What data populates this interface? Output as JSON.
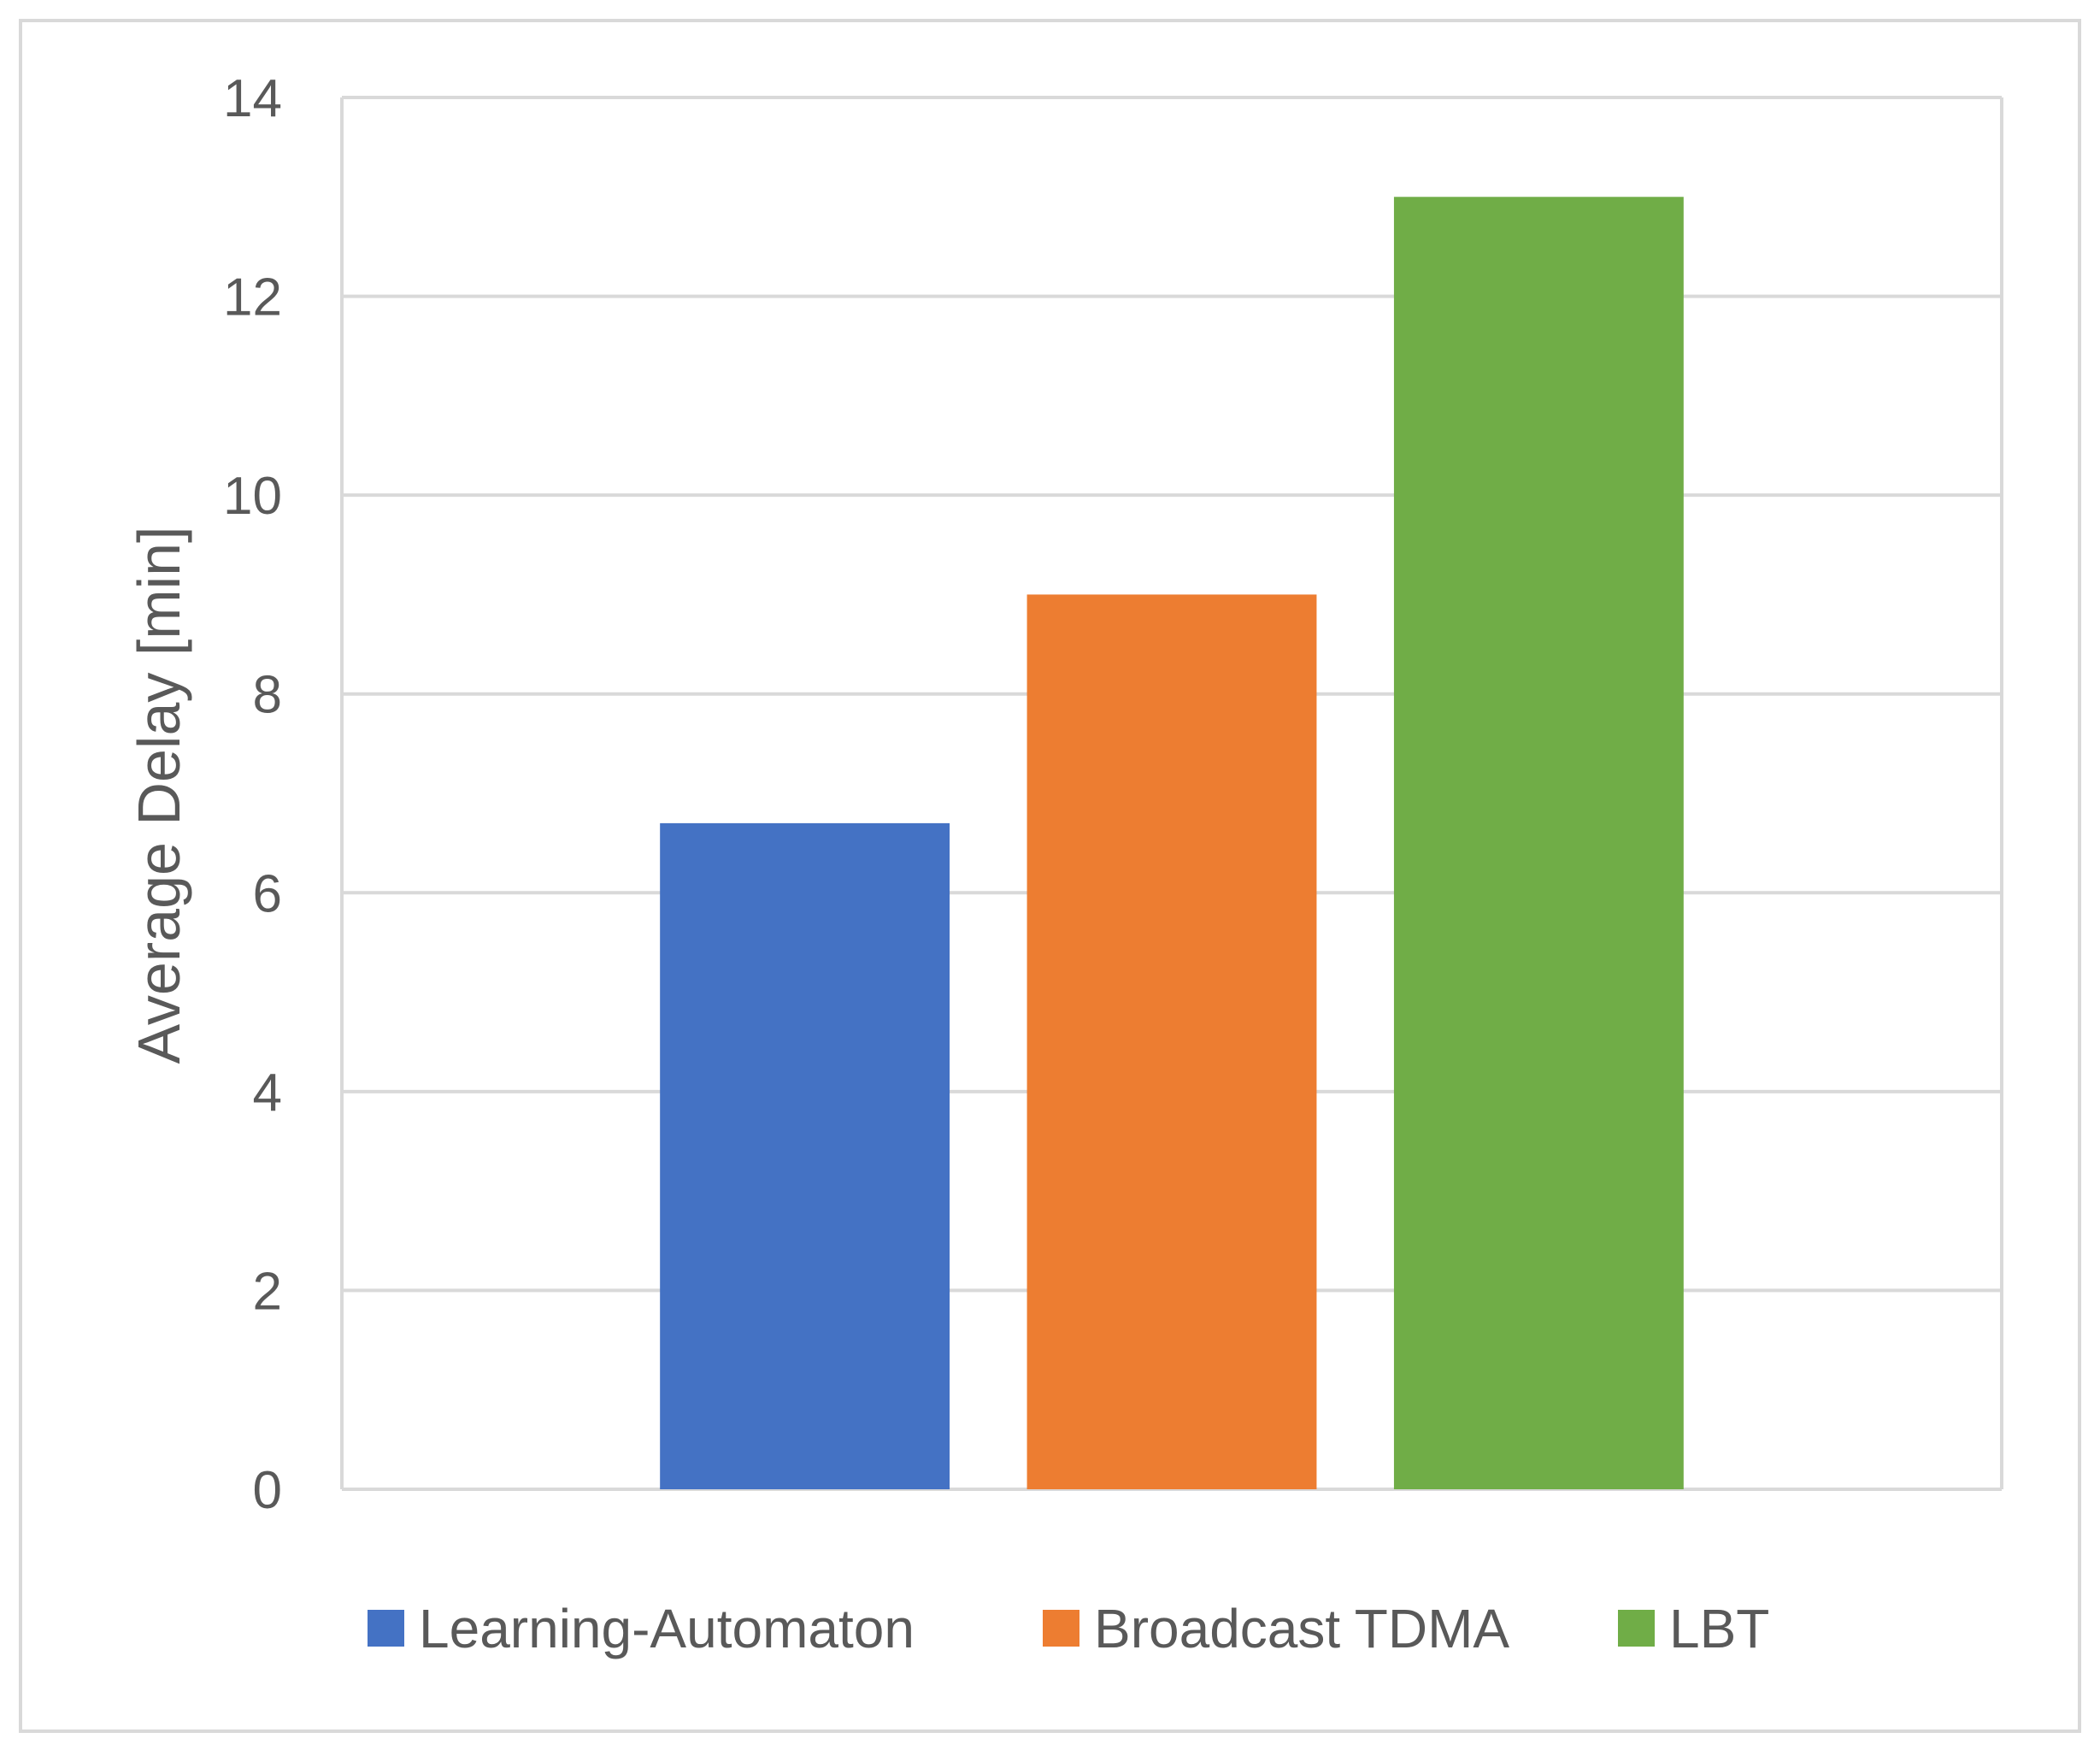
{
  "chart_data": {
    "type": "bar",
    "title": "",
    "xlabel": "",
    "ylabel": "Average Delay [min]",
    "ylim": [
      0,
      14
    ],
    "yticks": [
      0,
      2,
      4,
      6,
      8,
      10,
      12,
      14
    ],
    "grid": true,
    "legend_position": "bottom",
    "categories": [
      ""
    ],
    "series": [
      {
        "name": "Learning-Automaton",
        "values": [
          6.7
        ],
        "color": "#4472C4"
      },
      {
        "name": "Broadcast TDMA",
        "values": [
          9.0
        ],
        "color": "#ED7D31"
      },
      {
        "name": "LBT",
        "values": [
          13.0
        ],
        "color": "#70AD47"
      }
    ]
  }
}
